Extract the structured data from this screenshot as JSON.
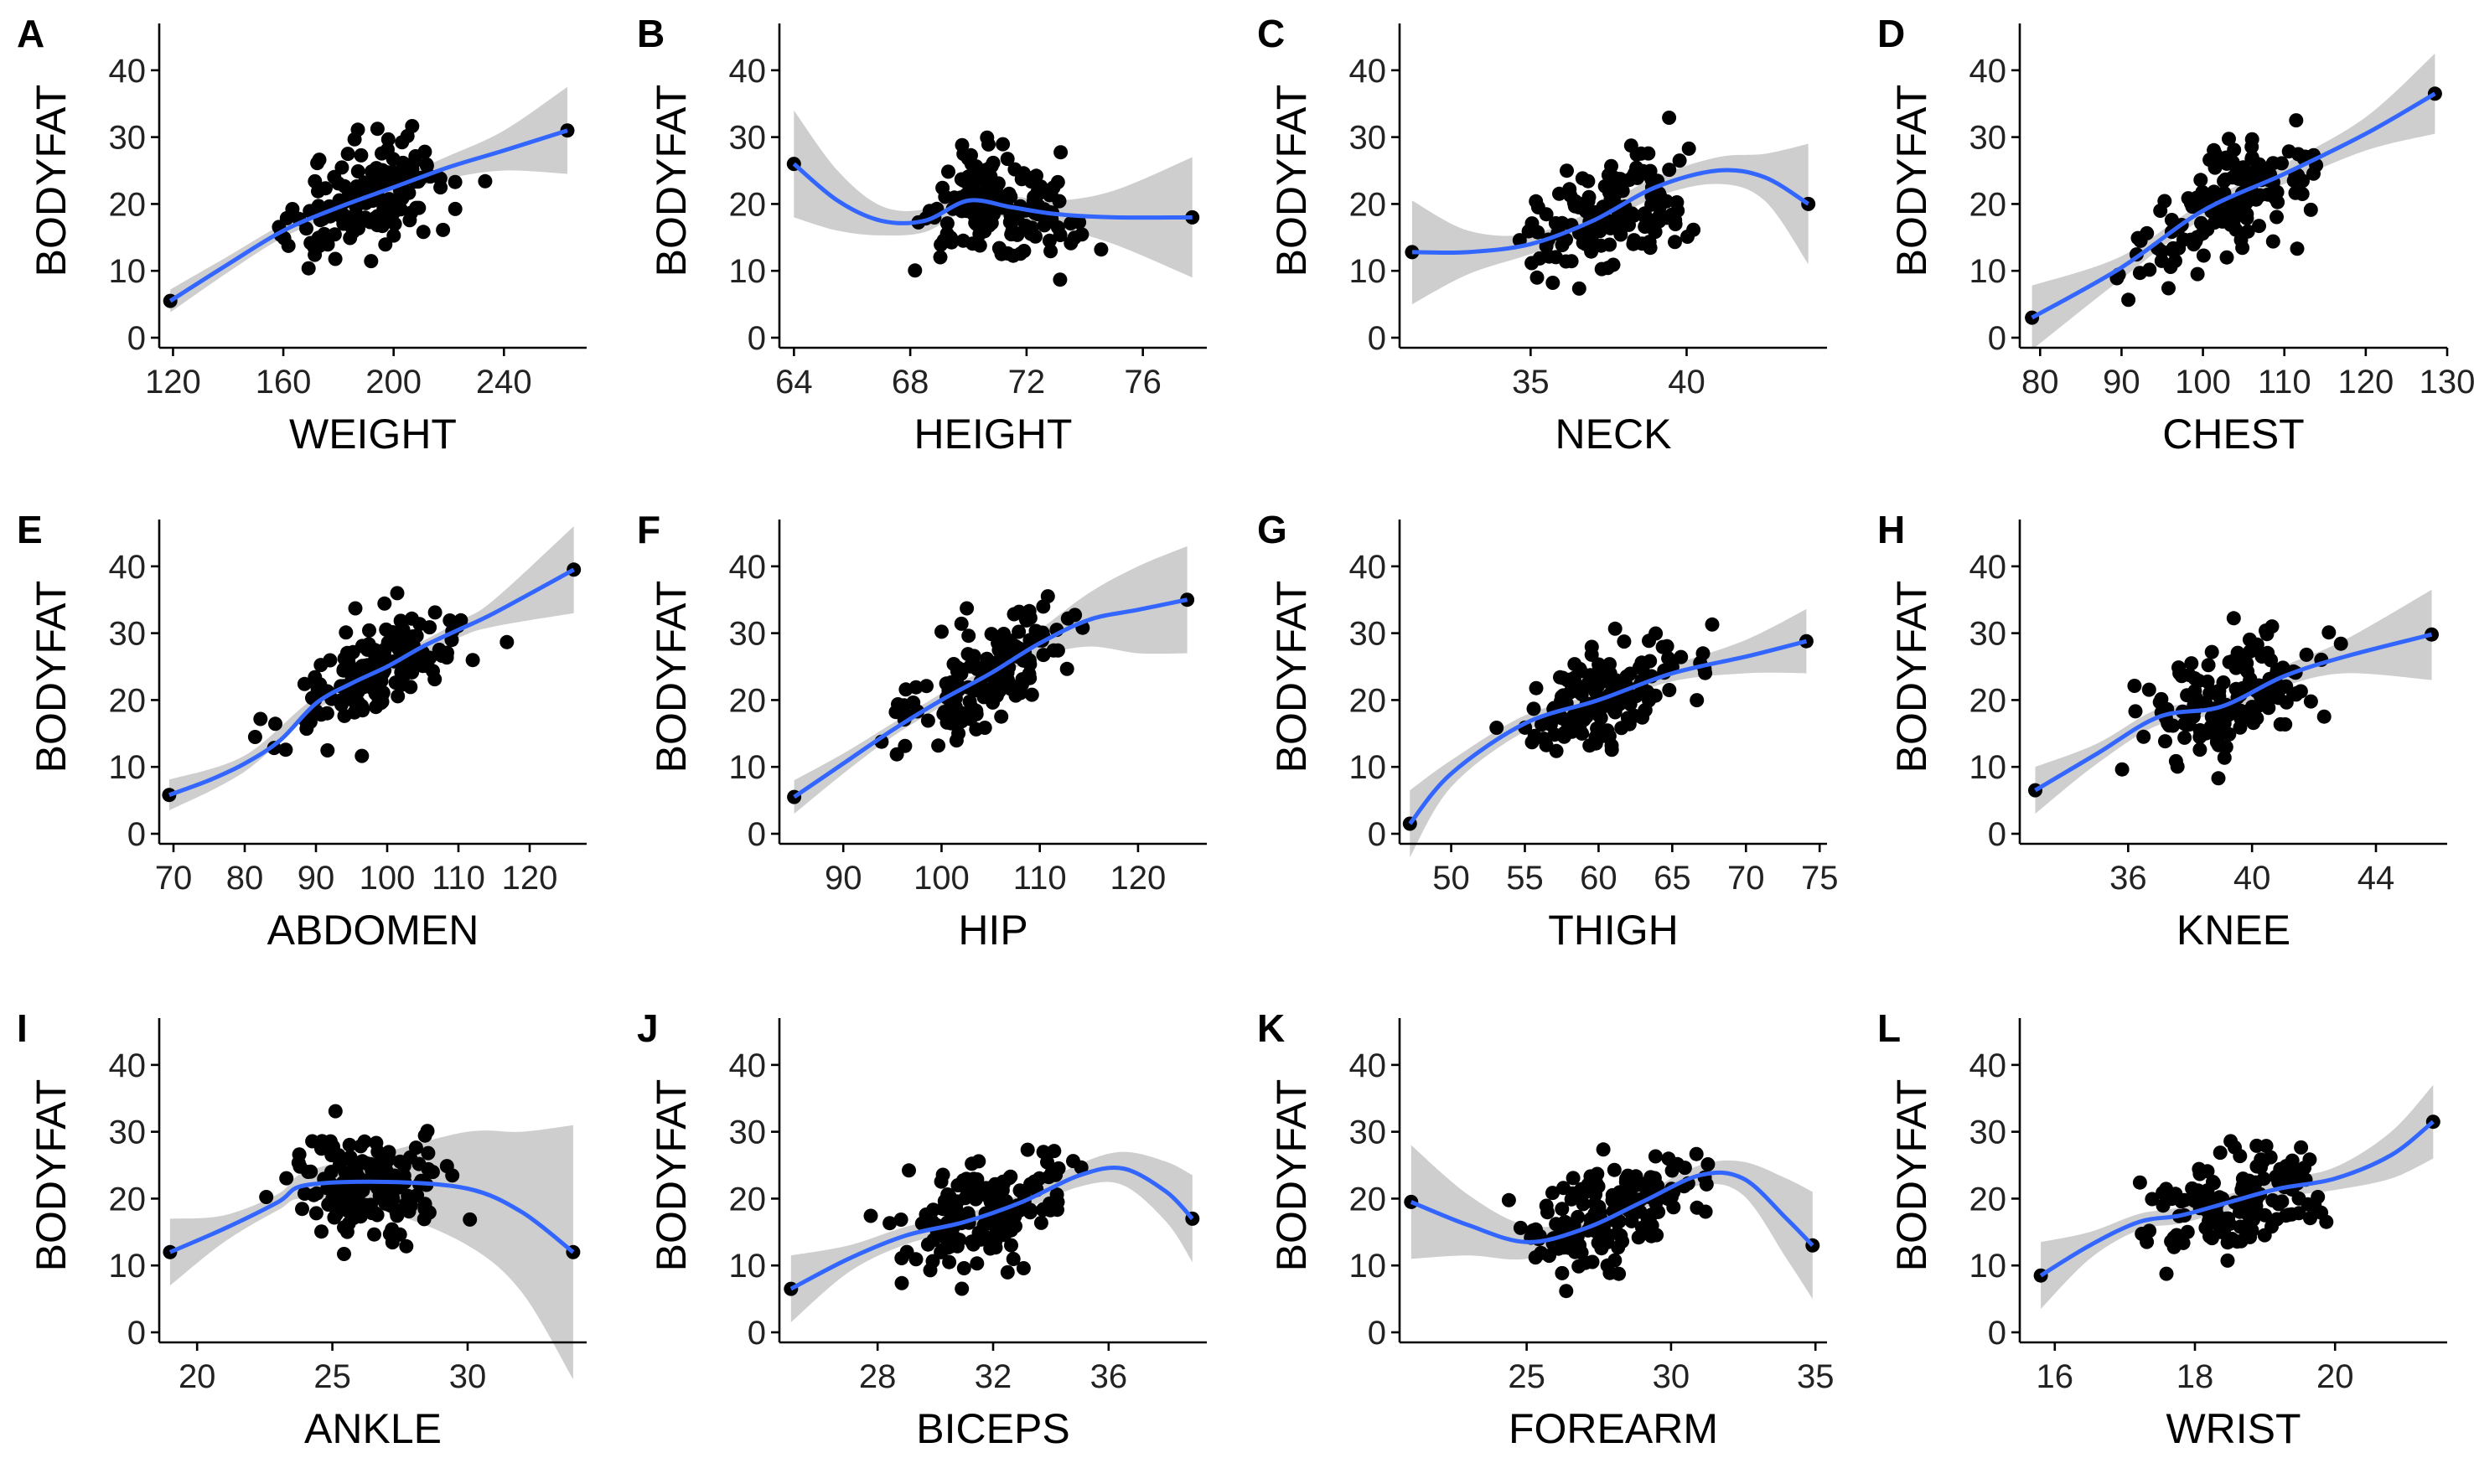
{
  "chart_data": [
    {
      "type": "scatter",
      "panel": "A",
      "xlabel": "WEIGHT",
      "ylabel": "BODYFAT",
      "xlim": [
        115,
        270
      ],
      "ylim": [
        0,
        47
      ],
      "xticks": [
        120,
        160,
        200,
        240
      ],
      "yticks": [
        0,
        10,
        20,
        30,
        40
      ],
      "fit": [
        [
          119,
          5.5
        ],
        [
          140,
          11
        ],
        [
          160,
          16
        ],
        [
          180,
          19.5
        ],
        [
          200,
          22.5
        ],
        [
          220,
          25.5
        ],
        [
          240,
          28
        ],
        [
          263,
          31
        ]
      ],
      "band": [
        [
          119,
          3.8,
          7.2
        ],
        [
          140,
          9.8,
          12.2
        ],
        [
          160,
          15,
          17
        ],
        [
          180,
          18.5,
          20.5
        ],
        [
          200,
          21.3,
          23.7
        ],
        [
          220,
          23.8,
          27.2
        ],
        [
          240,
          25,
          31
        ],
        [
          263,
          24.5,
          37.5
        ]
      ]
    },
    {
      "type": "scatter",
      "panel": "B",
      "xlabel": "HEIGHT",
      "ylabel": "BODYFAT",
      "xlim": [
        63.5,
        78.2
      ],
      "ylim": [
        0,
        47
      ],
      "xticks": [
        64,
        68,
        72,
        76
      ],
      "yticks": [
        0,
        10,
        20,
        30,
        40
      ],
      "fit": [
        [
          64,
          26
        ],
        [
          65.5,
          20.5
        ],
        [
          67,
          17.5
        ],
        [
          68.5,
          17.5
        ],
        [
          70,
          20.5
        ],
        [
          71.5,
          19.5
        ],
        [
          73,
          18.5
        ],
        [
          75,
          18
        ],
        [
          77.7,
          18
        ]
      ],
      "band": [
        [
          64,
          18,
          34
        ],
        [
          65.5,
          16,
          25
        ],
        [
          67,
          15.3,
          19.7
        ],
        [
          68.5,
          15.8,
          19.2
        ],
        [
          70,
          19,
          22
        ],
        [
          71.5,
          17.8,
          21.2
        ],
        [
          73,
          16.5,
          20.5
        ],
        [
          75,
          14,
          22
        ],
        [
          77.7,
          9,
          27
        ]
      ]
    },
    {
      "type": "scatter",
      "panel": "C",
      "xlabel": "NECK",
      "ylabel": "BODYFAT",
      "xlim": [
        30.8,
        44.5
      ],
      "ylim": [
        0,
        47
      ],
      "xticks": [
        35,
        40
      ],
      "yticks": [
        0,
        10,
        20,
        30,
        40
      ],
      "fit": [
        [
          31.2,
          12.8
        ],
        [
          33,
          12.8
        ],
        [
          35,
          14
        ],
        [
          37,
          17.5
        ],
        [
          39,
          22.5
        ],
        [
          41,
          25
        ],
        [
          42.5,
          24
        ],
        [
          43.9,
          20
        ]
      ],
      "band": [
        [
          31.2,
          5,
          20.5
        ],
        [
          33,
          9.5,
          16
        ],
        [
          35,
          12.5,
          15.5
        ],
        [
          37,
          16,
          19
        ],
        [
          39,
          21,
          24
        ],
        [
          41,
          23,
          27
        ],
        [
          42.5,
          20.5,
          27.5
        ],
        [
          43.9,
          11,
          29
        ]
      ]
    },
    {
      "type": "scatter",
      "panel": "D",
      "xlabel": "CHEST",
      "ylabel": "BODYFAT",
      "xlim": [
        77.5,
        130
      ],
      "ylim": [
        0,
        47
      ],
      "xticks": [
        80,
        90,
        100,
        110,
        120,
        130
      ],
      "yticks": [
        0,
        10,
        20,
        30,
        40
      ],
      "fit": [
        [
          79,
          3
        ],
        [
          90,
          10.5
        ],
        [
          100,
          19
        ],
        [
          110,
          24.5
        ],
        [
          120,
          30.5
        ],
        [
          128.5,
          36.5
        ]
      ],
      "band": [
        [
          79,
          -1.8,
          7.8
        ],
        [
          90,
          8.8,
          12.2
        ],
        [
          100,
          17.8,
          20.2
        ],
        [
          110,
          23,
          26
        ],
        [
          120,
          28,
          33
        ],
        [
          128.5,
          30.5,
          42.5
        ]
      ]
    },
    {
      "type": "scatter",
      "panel": "E",
      "xlabel": "ABDOMEN",
      "ylabel": "BODYFAT",
      "xlim": [
        68,
        128
      ],
      "ylim": [
        0,
        47
      ],
      "xticks": [
        70,
        80,
        90,
        100,
        110,
        120
      ],
      "yticks": [
        0,
        10,
        20,
        30,
        40
      ],
      "fit": [
        [
          69.4,
          5.8
        ],
        [
          75,
          8
        ],
        [
          80,
          10.5
        ],
        [
          85,
          14
        ],
        [
          90,
          19.5
        ],
        [
          95,
          22.5
        ],
        [
          100,
          25
        ],
        [
          105,
          28
        ],
        [
          110,
          30.5
        ],
        [
          115,
          33
        ],
        [
          126.2,
          39.5
        ]
      ],
      "band": [
        [
          69.4,
          3.5,
          8.1
        ],
        [
          80,
          9.3,
          11.7
        ],
        [
          90,
          18.5,
          20.5
        ],
        [
          100,
          24,
          26
        ],
        [
          110,
          29.3,
          31.7
        ],
        [
          115,
          31,
          35
        ],
        [
          126.2,
          33,
          46
        ]
      ]
    },
    {
      "type": "scatter",
      "panel": "F",
      "xlabel": "HIP",
      "ylabel": "BODYFAT",
      "xlim": [
        83.5,
        127
      ],
      "ylim": [
        0,
        47
      ],
      "xticks": [
        90,
        100,
        110,
        120
      ],
      "yticks": [
        0,
        10,
        20,
        30,
        40
      ],
      "fit": [
        [
          85,
          5.5
        ],
        [
          90,
          10.5
        ],
        [
          95,
          15.5
        ],
        [
          100,
          20
        ],
        [
          105,
          24
        ],
        [
          110,
          28.5
        ],
        [
          115,
          32
        ],
        [
          120,
          33.5
        ],
        [
          125,
          35
        ]
      ],
      "band": [
        [
          85,
          3,
          8
        ],
        [
          90,
          9,
          12
        ],
        [
          95,
          14.5,
          16.5
        ],
        [
          100,
          19,
          21
        ],
        [
          105,
          22.8,
          25.2
        ],
        [
          110,
          26.5,
          30.5
        ],
        [
          115,
          28,
          36
        ],
        [
          120,
          27,
          40
        ],
        [
          125,
          27,
          43
        ]
      ]
    },
    {
      "type": "scatter",
      "panel": "G",
      "xlabel": "THIGH",
      "ylabel": "BODYFAT",
      "xlim": [
        46.5,
        75.5
      ],
      "ylim": [
        0,
        47
      ],
      "xticks": [
        50,
        55,
        60,
        65,
        70,
        75
      ],
      "yticks": [
        0,
        10,
        20,
        30,
        40
      ],
      "fit": [
        [
          47.2,
          1.5
        ],
        [
          50,
          9
        ],
        [
          55,
          16.5
        ],
        [
          60,
          20
        ],
        [
          65,
          24
        ],
        [
          70,
          26.5
        ],
        [
          74.1,
          28.8
        ]
      ],
      "band": [
        [
          47.2,
          -3.5,
          6.5
        ],
        [
          50,
          7,
          11
        ],
        [
          55,
          15.3,
          17.7
        ],
        [
          60,
          19,
          21
        ],
        [
          65,
          22.8,
          25.2
        ],
        [
          70,
          24,
          29
        ],
        [
          74.1,
          24,
          33.6
        ]
      ]
    },
    {
      "type": "scatter",
      "panel": "H",
      "xlabel": "KNEE",
      "ylabel": "BODYFAT",
      "xlim": [
        32.5,
        46.3
      ],
      "ylim": [
        0,
        47
      ],
      "xticks": [
        36,
        40,
        44
      ],
      "yticks": [
        0,
        10,
        20,
        30,
        40
      ],
      "fit": [
        [
          33,
          6.5
        ],
        [
          35,
          12
        ],
        [
          37,
          17.5
        ],
        [
          39,
          19
        ],
        [
          41,
          23.5
        ],
        [
          43,
          26.5
        ],
        [
          45.8,
          29.8
        ]
      ],
      "band": [
        [
          33,
          3,
          10
        ],
        [
          35,
          10.5,
          13.5
        ],
        [
          37,
          16.3,
          18.7
        ],
        [
          39,
          18,
          20
        ],
        [
          41,
          22,
          25
        ],
        [
          43,
          24,
          29
        ],
        [
          45.8,
          23,
          36.5
        ]
      ]
    },
    {
      "type": "scatter",
      "panel": "I",
      "xlabel": "ANKLE",
      "ylabel": "BODYFAT",
      "xlim": [
        18.6,
        34.4
      ],
      "ylim": [
        0,
        47
      ],
      "xticks": [
        20,
        25,
        30
      ],
      "yticks": [
        0,
        10,
        20,
        30,
        40
      ],
      "fit": [
        [
          19,
          12
        ],
        [
          21,
          15.5
        ],
        [
          23,
          19.5
        ],
        [
          24,
          22
        ],
        [
          27,
          22.5
        ],
        [
          30,
          21.5
        ],
        [
          32,
          18
        ],
        [
          33.9,
          12
        ]
      ],
      "band": [
        [
          19,
          7,
          17
        ],
        [
          21,
          13.5,
          17.5
        ],
        [
          23,
          18.3,
          20.7
        ],
        [
          24,
          20,
          24
        ],
        [
          27,
          18,
          27
        ],
        [
          30,
          13,
          30
        ],
        [
          32,
          6,
          30
        ],
        [
          33.9,
          -7,
          31
        ]
      ]
    },
    {
      "type": "scatter",
      "panel": "J",
      "xlabel": "BICEPS",
      "ylabel": "BODYFAT",
      "xlim": [
        24.6,
        39.4
      ],
      "ylim": [
        0,
        47
      ],
      "xticks": [
        28,
        32,
        36
      ],
      "yticks": [
        0,
        10,
        20,
        30,
        40
      ],
      "fit": [
        [
          25,
          6.5
        ],
        [
          27,
          11
        ],
        [
          29,
          14.5
        ],
        [
          31,
          16.5
        ],
        [
          33,
          19.5
        ],
        [
          35,
          23.5
        ],
        [
          36.5,
          24.5
        ],
        [
          38,
          21
        ],
        [
          38.9,
          17
        ]
      ],
      "band": [
        [
          25,
          1.5,
          11.5
        ],
        [
          27,
          9,
          13
        ],
        [
          29,
          13.2,
          15.8
        ],
        [
          31,
          15.3,
          17.7
        ],
        [
          33,
          18.3,
          20.7
        ],
        [
          35,
          21.8,
          25.2
        ],
        [
          36.5,
          22,
          27
        ],
        [
          38,
          16.5,
          25.5
        ],
        [
          38.9,
          10.5,
          23.5
        ]
      ]
    },
    {
      "type": "scatter",
      "panel": "K",
      "xlabel": "FOREARM",
      "ylabel": "BODYFAT",
      "xlim": [
        20.6,
        35.4
      ],
      "ylim": [
        0,
        47
      ],
      "xticks": [
        25,
        30,
        35
      ],
      "yticks": [
        0,
        10,
        20,
        30,
        40
      ],
      "fit": [
        [
          21,
          19.5
        ],
        [
          23,
          16
        ],
        [
          25,
          13.5
        ],
        [
          27,
          15.5
        ],
        [
          29,
          19.5
        ],
        [
          31,
          23.5
        ],
        [
          32.5,
          23
        ],
        [
          34,
          17
        ],
        [
          34.9,
          13
        ]
      ],
      "band": [
        [
          21,
          11,
          28
        ],
        [
          23,
          11.5,
          20.5
        ],
        [
          25,
          11,
          16
        ],
        [
          27,
          14.2,
          16.8
        ],
        [
          29,
          18.3,
          20.7
        ],
        [
          31,
          22,
          25
        ],
        [
          32.5,
          20.5,
          25.5
        ],
        [
          34,
          11,
          23
        ],
        [
          34.9,
          5,
          21
        ]
      ]
    },
    {
      "type": "scatter",
      "panel": "L",
      "xlabel": "WRIST",
      "ylabel": "BODYFAT",
      "xlim": [
        15.5,
        21.6
      ],
      "ylim": [
        0,
        47
      ],
      "xticks": [
        16,
        18,
        20
      ],
      "yticks": [
        0,
        10,
        20,
        30,
        40
      ],
      "fit": [
        [
          15.8,
          8.5
        ],
        [
          16.5,
          13
        ],
        [
          17.2,
          16.5
        ],
        [
          17.8,
          17.5
        ],
        [
          18.5,
          19.5
        ],
        [
          19.2,
          21.5
        ],
        [
          20,
          23
        ],
        [
          20.8,
          26.5
        ],
        [
          21.4,
          31.5
        ]
      ],
      "band": [
        [
          15.8,
          3.5,
          13.5
        ],
        [
          16.5,
          11,
          15
        ],
        [
          17.2,
          15.3,
          17.7
        ],
        [
          17.8,
          16.3,
          18.7
        ],
        [
          18.5,
          18.3,
          20.7
        ],
        [
          19.2,
          20.2,
          22.8
        ],
        [
          20,
          21.3,
          24.7
        ],
        [
          20.8,
          23,
          30
        ],
        [
          21.4,
          26,
          37
        ]
      ]
    }
  ]
}
